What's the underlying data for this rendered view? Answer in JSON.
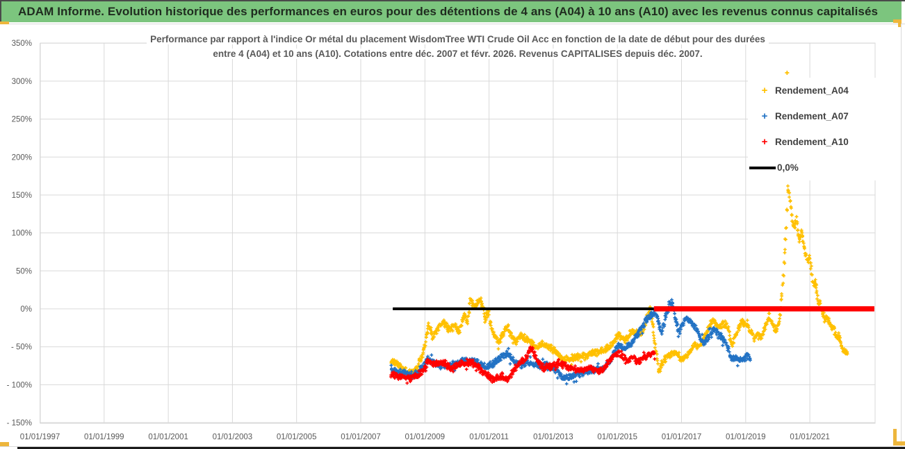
{
  "header": {
    "title": "ADAM Informe. Evolution historique des performances en euros pour des détentions de 4 ans (A04) à 10 ans (A10) avec les revenus connus capitalisés",
    "bg_color": "#7cc57e",
    "text_color": "#1f2b1f"
  },
  "chart": {
    "title_line1": "Performance par rapport à l'indice Or métal  du placement WisdomTree WTI Crude Oil Acc en fonction de la date de début pour des durées",
    "title_line2": "entre 4 (A04) et 10 ans (A10). Cotations entre déc. 2007 et févr. 2026. Revenus CAPITALISES depuis déc. 2007.",
    "legend": [
      {
        "label": "Rendement_A04",
        "color": "#FFC000",
        "marker": "plus"
      },
      {
        "label": "Rendement_A07",
        "color": "#2272C4",
        "marker": "plus"
      },
      {
        "label": "Rendement_A10",
        "color": "#FF0000",
        "marker": "plus"
      },
      {
        "label": "0,0%",
        "color": "#000000",
        "marker": "line"
      }
    ],
    "y_axis": {
      "labels": [
        "350%",
        "300%",
        "250%",
        "200%",
        "150%",
        "100%",
        "50%",
        "0%",
        "- 50%",
        "- 100%",
        "- 150%"
      ],
      "values": [
        350,
        300,
        250,
        200,
        150,
        100,
        50,
        0,
        -50,
        -100,
        -150
      ]
    },
    "x_axis": {
      "labels": [
        "01/01/1997",
        "01/01/1999",
        "01/01/2001",
        "01/01/2003",
        "01/01/2005",
        "01/01/2007",
        "01/01/2009",
        "01/01/2011",
        "01/01/2013",
        "01/01/2015",
        "01/01/2017",
        "01/01/2019",
        "01/01/2021"
      ],
      "years": [
        1997,
        1999,
        2001,
        2003,
        2005,
        2007,
        2009,
        2011,
        2013,
        2015,
        2017,
        2019,
        2021
      ]
    },
    "grid_color": "#d9d9d9",
    "axis_text_color": "#595959"
  },
  "chart_data": {
    "type": "scatter",
    "x_range_years": [
      1997,
      2023.03
    ],
    "y_range_pct": [
      -150,
      350
    ],
    "grid": true,
    "legend_position": "upper-right",
    "series": [
      {
        "name": "Rendement_A04",
        "color": "#FFC000",
        "points": [
          [
            2007.95,
            -70
          ],
          [
            2008.1,
            -72
          ],
          [
            2008.3,
            -79
          ],
          [
            2008.55,
            -85
          ],
          [
            2008.75,
            -80
          ],
          [
            2008.95,
            -58
          ],
          [
            2009.12,
            -20
          ],
          [
            2009.25,
            -38
          ],
          [
            2009.42,
            -24
          ],
          [
            2009.58,
            -16
          ],
          [
            2009.75,
            -28
          ],
          [
            2009.92,
            -22
          ],
          [
            2010.05,
            -30
          ],
          [
            2010.23,
            -8
          ],
          [
            2010.33,
            -18
          ],
          [
            2010.42,
            12
          ],
          [
            2010.55,
            2
          ],
          [
            2010.65,
            8
          ],
          [
            2010.75,
            11
          ],
          [
            2010.88,
            -14
          ],
          [
            2010.98,
            -4
          ],
          [
            2011.1,
            -30
          ],
          [
            2011.3,
            -44
          ],
          [
            2011.46,
            -32
          ],
          [
            2011.57,
            -23
          ],
          [
            2011.7,
            -35
          ],
          [
            2011.83,
            -43
          ],
          [
            2012.0,
            -36
          ],
          [
            2012.15,
            -40
          ],
          [
            2012.29,
            -44
          ],
          [
            2012.5,
            -50
          ],
          [
            2012.7,
            -46
          ],
          [
            2012.9,
            -52
          ],
          [
            2013.09,
            -56
          ],
          [
            2013.3,
            -68
          ],
          [
            2013.5,
            -66
          ],
          [
            2013.74,
            -63
          ],
          [
            2013.95,
            -62
          ],
          [
            2014.17,
            -59
          ],
          [
            2014.35,
            -57
          ],
          [
            2014.54,
            -55
          ],
          [
            2014.78,
            -50
          ],
          [
            2015.04,
            -34
          ],
          [
            2015.25,
            -43
          ],
          [
            2015.47,
            -29
          ],
          [
            2015.62,
            -32
          ],
          [
            2015.75,
            -34
          ],
          [
            2015.9,
            -15
          ],
          [
            2016.01,
            -2
          ],
          [
            2016.1,
            -20
          ],
          [
            2016.2,
            -55
          ],
          [
            2016.3,
            -82
          ],
          [
            2016.45,
            -68
          ],
          [
            2016.56,
            -64
          ],
          [
            2016.7,
            -58
          ],
          [
            2016.84,
            -58
          ],
          [
            2017.0,
            -66
          ],
          [
            2017.1,
            -64
          ],
          [
            2017.25,
            -58
          ],
          [
            2017.42,
            -47
          ],
          [
            2017.55,
            -50
          ],
          [
            2017.7,
            -37
          ],
          [
            2017.85,
            -25
          ],
          [
            2018.0,
            -15
          ],
          [
            2018.14,
            -26
          ],
          [
            2018.3,
            -20
          ],
          [
            2018.44,
            -24
          ],
          [
            2018.57,
            -48
          ],
          [
            2018.7,
            -35
          ],
          [
            2018.88,
            -17
          ],
          [
            2019.05,
            -22
          ],
          [
            2019.16,
            -29
          ],
          [
            2019.27,
            -40
          ],
          [
            2019.4,
            -33
          ],
          [
            2019.48,
            -37
          ],
          [
            2019.6,
            -25
          ],
          [
            2019.74,
            -11
          ],
          [
            2019.85,
            -22
          ],
          [
            2019.96,
            -30
          ],
          [
            2020.05,
            -15
          ],
          [
            2020.13,
            20
          ],
          [
            2020.18,
            45
          ],
          [
            2020.24,
            90
          ],
          [
            2020.28,
            130
          ],
          [
            2020.31,
            158
          ],
          [
            2020.36,
            150
          ],
          [
            2020.39,
            142
          ],
          [
            2020.45,
            115
          ],
          [
            2020.52,
            107
          ],
          [
            2020.58,
            121
          ],
          [
            2020.67,
            91
          ],
          [
            2020.75,
            101
          ],
          [
            2020.85,
            76
          ],
          [
            2020.92,
            64
          ],
          [
            2021.0,
            69
          ],
          [
            2021.06,
            45
          ],
          [
            2021.11,
            32
          ],
          [
            2021.18,
            35
          ],
          [
            2021.26,
            11
          ],
          [
            2021.32,
            7
          ],
          [
            2021.39,
            -5
          ],
          [
            2021.47,
            -14
          ],
          [
            2021.54,
            -12
          ],
          [
            2021.61,
            -20
          ],
          [
            2021.69,
            -26
          ],
          [
            2021.76,
            -27
          ],
          [
            2021.82,
            -38
          ],
          [
            2021.89,
            -34
          ],
          [
            2021.97,
            -47
          ],
          [
            2022.05,
            -55
          ],
          [
            2022.13,
            -58
          ],
          [
            2022.19,
            -57
          ]
        ]
      },
      {
        "name": "Rendement_A07",
        "color": "#2272C4",
        "points": [
          [
            2007.95,
            -80
          ],
          [
            2008.15,
            -83
          ],
          [
            2008.3,
            -85
          ],
          [
            2008.55,
            -87
          ],
          [
            2008.75,
            -85
          ],
          [
            2008.95,
            -75
          ],
          [
            2009.12,
            -65
          ],
          [
            2009.3,
            -72
          ],
          [
            2009.45,
            -74
          ],
          [
            2009.6,
            -75
          ],
          [
            2009.8,
            -74
          ],
          [
            2010.0,
            -72
          ],
          [
            2010.2,
            -68
          ],
          [
            2010.35,
            -70
          ],
          [
            2010.45,
            -67
          ],
          [
            2010.6,
            -70
          ],
          [
            2010.75,
            -72
          ],
          [
            2010.9,
            -76
          ],
          [
            2011.05,
            -74
          ],
          [
            2011.15,
            -71
          ],
          [
            2011.3,
            -66
          ],
          [
            2011.45,
            -61
          ],
          [
            2011.57,
            -59
          ],
          [
            2011.7,
            -65
          ],
          [
            2011.83,
            -70
          ],
          [
            2012.0,
            -74
          ],
          [
            2012.15,
            -71
          ],
          [
            2012.3,
            -72
          ],
          [
            2012.45,
            -74
          ],
          [
            2012.6,
            -76
          ],
          [
            2012.75,
            -74
          ],
          [
            2012.9,
            -78
          ],
          [
            2013.1,
            -80
          ],
          [
            2013.3,
            -92
          ],
          [
            2013.45,
            -90
          ],
          [
            2013.6,
            -88
          ],
          [
            2013.75,
            -86
          ],
          [
            2013.95,
            -84
          ],
          [
            2014.15,
            -81
          ],
          [
            2014.35,
            -80
          ],
          [
            2014.6,
            -78
          ],
          [
            2014.8,
            -65
          ],
          [
            2015.04,
            -47
          ],
          [
            2015.25,
            -52
          ],
          [
            2015.47,
            -44
          ],
          [
            2015.6,
            -35
          ],
          [
            2015.75,
            -26
          ],
          [
            2015.9,
            -15
          ],
          [
            2015.97,
            -12
          ],
          [
            2016.1,
            -8
          ],
          [
            2016.19,
            -5
          ],
          [
            2016.3,
            -20
          ],
          [
            2016.39,
            -32
          ],
          [
            2016.5,
            -10
          ],
          [
            2016.62,
            5
          ],
          [
            2016.71,
            9
          ],
          [
            2016.8,
            -15
          ],
          [
            2016.93,
            -30
          ],
          [
            2017.05,
            -20
          ],
          [
            2017.14,
            -11
          ],
          [
            2017.3,
            -18
          ],
          [
            2017.42,
            -24
          ],
          [
            2017.55,
            -35
          ],
          [
            2017.7,
            -47
          ],
          [
            2017.85,
            -36
          ],
          [
            2018.0,
            -26
          ],
          [
            2018.15,
            -32
          ],
          [
            2018.29,
            -39
          ],
          [
            2018.45,
            -52
          ],
          [
            2018.57,
            -66
          ],
          [
            2018.7,
            -64
          ],
          [
            2018.8,
            -68
          ],
          [
            2018.95,
            -66
          ],
          [
            2019.05,
            -62
          ],
          [
            2019.16,
            -67
          ]
        ]
      },
      {
        "name": "Rendement_A10",
        "color": "#FF0000",
        "points": [
          [
            2007.95,
            -87
          ],
          [
            2008.15,
            -89
          ],
          [
            2008.35,
            -90
          ],
          [
            2008.55,
            -91
          ],
          [
            2008.75,
            -89
          ],
          [
            2008.95,
            -82
          ],
          [
            2009.12,
            -67
          ],
          [
            2009.3,
            -74
          ],
          [
            2009.45,
            -71
          ],
          [
            2009.6,
            -72
          ],
          [
            2009.8,
            -78
          ],
          [
            2010.0,
            -75
          ],
          [
            2010.2,
            -72
          ],
          [
            2010.45,
            -70
          ],
          [
            2010.6,
            -74
          ],
          [
            2010.8,
            -82
          ],
          [
            2011.0,
            -90
          ],
          [
            2011.15,
            -93
          ],
          [
            2011.3,
            -90
          ],
          [
            2011.4,
            -89
          ],
          [
            2011.56,
            -94
          ],
          [
            2011.7,
            -86
          ],
          [
            2011.83,
            -78
          ],
          [
            2011.98,
            -71
          ],
          [
            2012.16,
            -66
          ],
          [
            2012.29,
            -50
          ],
          [
            2012.4,
            -58
          ],
          [
            2012.51,
            -69
          ],
          [
            2012.6,
            -73
          ],
          [
            2012.72,
            -78
          ],
          [
            2012.85,
            -76
          ],
          [
            2013.02,
            -74
          ],
          [
            2013.2,
            -72
          ],
          [
            2013.35,
            -75
          ],
          [
            2013.5,
            -77
          ],
          [
            2013.65,
            -79
          ],
          [
            2013.8,
            -80
          ],
          [
            2013.95,
            -81
          ],
          [
            2014.15,
            -78
          ],
          [
            2014.3,
            -80
          ],
          [
            2014.45,
            -81
          ],
          [
            2014.6,
            -78
          ],
          [
            2014.8,
            -67
          ],
          [
            2015.04,
            -58
          ],
          [
            2015.2,
            -65
          ],
          [
            2015.33,
            -69
          ],
          [
            2015.5,
            -64
          ],
          [
            2015.62,
            -71
          ],
          [
            2015.8,
            -65
          ],
          [
            2015.95,
            -61
          ],
          [
            2016.08,
            -60
          ],
          [
            2016.18,
            -59
          ]
        ]
      }
    ],
    "outlier": {
      "series": "Rendement_A04",
      "point": [
        2020.29,
        311
      ]
    },
    "zero_line_black": {
      "value": 0,
      "from_year": 2008.0,
      "to_year": 2016.14,
      "color": "#000000"
    },
    "zero_line_red": {
      "value": 0,
      "from_year": 2016.14,
      "to_year": 2023.01,
      "color": "#FF0000"
    }
  },
  "decor": {
    "amber": "#edb63c",
    "bottom_bar": "#1a1a1a",
    "rule": "#d9d9d9"
  }
}
